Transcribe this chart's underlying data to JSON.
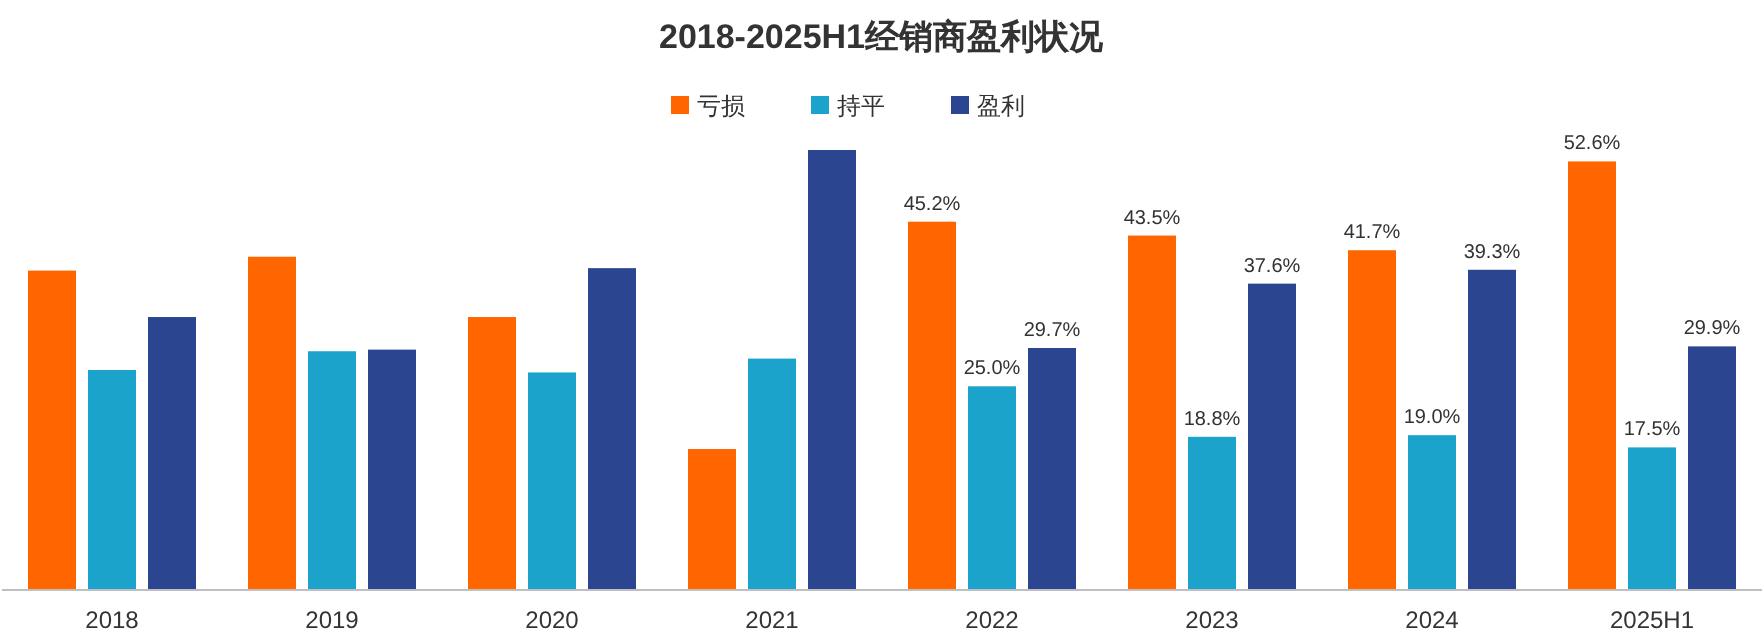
{
  "chart_data": {
    "type": "bar",
    "title": "2018-2025H1经销商盈利状况",
    "categories": [
      "2018",
      "2019",
      "2020",
      "2021",
      "2022",
      "2023",
      "2024",
      "2025H1"
    ],
    "series": [
      {
        "name": "亏损",
        "color": "#ff6600",
        "values": [
          39.2,
          40.9,
          33.5,
          17.3,
          45.2,
          43.5,
          41.7,
          52.6
        ],
        "value_labels": [
          null,
          null,
          null,
          null,
          "45.2%",
          "43.5%",
          "41.7%",
          "52.6%"
        ]
      },
      {
        "name": "持平",
        "color": "#1ba3cc",
        "values": [
          27.0,
          29.3,
          26.7,
          28.4,
          25.0,
          18.8,
          19.0,
          17.5
        ],
        "value_labels": [
          null,
          null,
          null,
          null,
          "25.0%",
          "18.8%",
          "19.0%",
          "17.5%"
        ]
      },
      {
        "name": "盈利",
        "color": "#2b4590",
        "values": [
          33.5,
          29.5,
          39.5,
          54.0,
          29.7,
          37.6,
          39.3,
          29.9
        ],
        "value_labels": [
          null,
          null,
          null,
          null,
          "29.7%",
          "37.6%",
          "39.3%",
          "29.9%"
        ]
      }
    ],
    "legend": "top",
    "tick_labels": "x"
  }
}
